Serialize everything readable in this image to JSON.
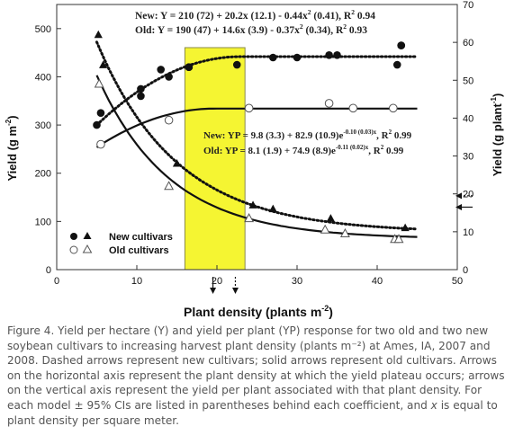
{
  "chart_data": {
    "type": "scatter",
    "xlabel": "Plant density (plants m",
    "xlabel_sup": "-2",
    "xlabel_close": ")",
    "ylabel_left": "Yield (g m",
    "ylabel_left_sup": "-2",
    "ylabel_left_close": ")",
    "ylabel_right": "Yield (g plant",
    "ylabel_right_sup": "-1",
    "ylabel_right_close": ")",
    "xlim": [
      0,
      50
    ],
    "ylim_left": [
      0,
      550
    ],
    "ylim_right": [
      0,
      70
    ],
    "x_ticks": [
      "0",
      "10",
      "20",
      "30",
      "40",
      "50"
    ],
    "y_left_ticks": [
      "0",
      "100",
      "200",
      "300",
      "400",
      "500"
    ],
    "y_right_ticks": [
      "0",
      "10",
      "20",
      "30",
      "40",
      "50",
      "60",
      "70"
    ],
    "highlight_band": {
      "x_from": 16,
      "x_to": 23.5,
      "color": "#f5f532"
    },
    "equations": {
      "y_new": "New: Y = 210 (72) + 20.2x (12.1) - 0.44x",
      "y_new_tail": " (0.41), R",
      "y_new_end": " 0.94",
      "y_old": "Old: Y = 190 (47) + 14.6x (3.9) - 0.37x",
      "y_old_tail": " (0.34), R",
      "y_old_end": " 0.93",
      "yp_new": "New: YP = 9.8 (3.3) + 82.9 (10.9)e",
      "yp_new_exp": "-0.10 (0.03)x",
      "yp_new_end": ", R",
      "yp_new_r2": " 0.99",
      "yp_old": "Old: YP = 8.1 (1.9) + 74.9 (8.9)e",
      "yp_old_exp": "-0.11 (0.02)x",
      "yp_old_end": ", R",
      "yp_old_r2": " 0.99",
      "sup2": "2"
    },
    "legend": {
      "new_label": "New cultivars",
      "old_label": "Old cultivars",
      "placement": "bottom-left"
    },
    "series": [
      {
        "name": "New cultivars",
        "kind": "yield",
        "marker": "filled-circle",
        "axis": "left",
        "x": [
          5.5,
          10.5,
          14,
          16.5,
          27,
          35,
          42.5,
          43
        ],
        "y": [
          325,
          375,
          400,
          420,
          440,
          445,
          425,
          465
        ],
        "x_b": [
          43,
          10.5,
          22.5,
          13,
          16.5,
          30,
          34,
          5
        ],
        "y_b": [
          465,
          360,
          425,
          415,
          420,
          440,
          445,
          300
        ]
      },
      {
        "name": "New cultivars",
        "kind": "yield_per_plant",
        "marker": "filled-triangle",
        "axis": "right",
        "x": [
          5.2,
          5.8,
          15,
          24.5,
          27,
          34.2,
          43.5
        ],
        "y": [
          62,
          54,
          28,
          17,
          16,
          13.5,
          11
        ]
      },
      {
        "name": "Old cultivars",
        "kind": "yield",
        "marker": "open-circle",
        "axis": "left",
        "x": [
          5.5,
          14,
          24,
          34,
          37,
          42
        ],
        "y": [
          260,
          310,
          335,
          345,
          335,
          335
        ]
      },
      {
        "name": "Old cultivars",
        "kind": "yield_per_plant",
        "marker": "open-triangle",
        "axis": "right",
        "x": [
          5.3,
          14,
          24,
          33.5,
          36,
          42.2,
          42.7
        ],
        "y": [
          49,
          22,
          13.5,
          10.5,
          9.5,
          8,
          8
        ]
      }
    ],
    "curves": [
      {
        "name": "New",
        "kind": "yield",
        "axis": "left",
        "style": "dashed",
        "a": 210,
        "b": 20.2,
        "c": -0.44
      },
      {
        "name": "Old",
        "kind": "yield",
        "axis": "left",
        "style": "solid",
        "a": 190,
        "b": 14.6,
        "c": -0.37
      },
      {
        "name": "New",
        "kind": "yield_per_plant",
        "axis": "right",
        "style": "dashed",
        "a": 9.8,
        "b": 82.9,
        "k": -0.1
      },
      {
        "name": "Old",
        "kind": "yield_per_plant",
        "axis": "right",
        "style": "solid",
        "a": 8.1,
        "b": 74.9,
        "k": -0.11
      }
    ],
    "arrows": {
      "x_axis": [
        {
          "x": 19.5,
          "style": "solid"
        },
        {
          "x": 22.3,
          "style": "dashed"
        }
      ],
      "y_right": [
        {
          "y": 19.5,
          "style": "dashed"
        },
        {
          "y": 16.5,
          "style": "solid"
        }
      ]
    }
  },
  "caption": "Figure 4. Yield per hectare (Y) and yield per plant (YP) response for two old and two new soybean cultivars to increasing harvest plant density (plants m⁻²) at Ames, IA, 2007 and 2008. Dashed arrows represent new cultivars; solid arrows represent old cultivars. Arrows on the horizontal axis represent the plant density at which the yield plateau occurs; arrows on the vertical axis represent the yield per plant associated with that plant density. For each model ± 95% CIs are listed in parentheses behind each coefficient, and ",
  "caption_var": "x",
  "caption_end": " is equal to plant density per square meter."
}
